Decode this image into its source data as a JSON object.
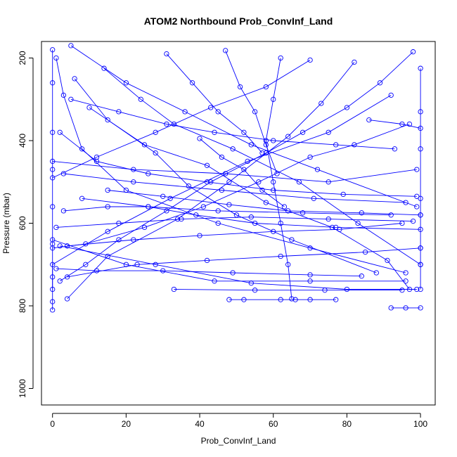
{
  "chart_data": {
    "type": "line",
    "title": "ATOM2 Northbound Prob_ConvInf_Land",
    "xlabel": "Prob_ConvInf_Land",
    "ylabel": "Pressure (mbar)",
    "xlim": [
      -3,
      104
    ],
    "ylim": [
      1040,
      160
    ],
    "y_reversed": true,
    "xticks": [
      0,
      20,
      40,
      60,
      80,
      100
    ],
    "yticks": [
      200,
      400,
      600,
      800,
      1000
    ],
    "grid": false,
    "legend": "none",
    "marker": "open-circle",
    "series_color": "#0000ff",
    "series": [
      {
        "values": [
          [
            100,
            225
          ],
          [
            100,
            330
          ],
          [
            100,
            420
          ],
          [
            100,
            540
          ],
          [
            100,
            580
          ],
          [
            100,
            660
          ],
          [
            100,
            700
          ],
          [
            100,
            760
          ]
        ]
      },
      {
        "values": [
          [
            0,
            180
          ],
          [
            0,
            260
          ],
          [
            0,
            380
          ],
          [
            0,
            470
          ],
          [
            0,
            560
          ],
          [
            0,
            650
          ],
          [
            0,
            730
          ],
          [
            0,
            790
          ],
          [
            0,
            810
          ]
        ]
      },
      {
        "values": [
          [
            1,
            200
          ],
          [
            3,
            290
          ],
          [
            8,
            420
          ],
          [
            20,
            520
          ],
          [
            45,
            600
          ],
          [
            70,
            660
          ],
          [
            96,
            720
          ]
        ]
      },
      {
        "values": [
          [
            5,
            170
          ],
          [
            20,
            260
          ],
          [
            36,
            330
          ],
          [
            54,
            410
          ],
          [
            72,
            470
          ],
          [
            99,
            560
          ]
        ]
      },
      {
        "values": [
          [
            92,
            290
          ],
          [
            75,
            380
          ],
          [
            53,
            450
          ],
          [
            32,
            540
          ],
          [
            15,
            620
          ],
          [
            0,
            700
          ],
          [
            0,
            760
          ]
        ]
      },
      {
        "values": [
          [
            62,
            200
          ],
          [
            60,
            300
          ],
          [
            58,
            400
          ],
          [
            60,
            500
          ],
          [
            62,
            600
          ],
          [
            64,
            700
          ],
          [
            65,
            783
          ]
        ]
      },
      {
        "values": [
          [
            2,
            655
          ],
          [
            28,
            700
          ],
          [
            54,
            745
          ],
          [
            80,
            760
          ],
          [
            99,
            760
          ]
        ]
      },
      {
        "values": [
          [
            82,
            210
          ],
          [
            73,
            310
          ],
          [
            64,
            390
          ],
          [
            48,
            500
          ],
          [
            34,
            590
          ],
          [
            15,
            680
          ],
          [
            4,
            783
          ]
        ]
      },
      {
        "values": [
          [
            10,
            320
          ],
          [
            25,
            410
          ],
          [
            42,
            460
          ],
          [
            58,
            550
          ],
          [
            76,
            610
          ],
          [
            91,
            690
          ],
          [
            97,
            760
          ]
        ]
      },
      {
        "values": [
          [
            0,
            640
          ],
          [
            20,
            700
          ],
          [
            44,
            740
          ],
          [
            70,
            740
          ],
          [
            96,
            740
          ]
        ]
      },
      {
        "values": [
          [
            3,
            480
          ],
          [
            22,
            500
          ],
          [
            46,
            520
          ],
          [
            71,
            540
          ],
          [
            96,
            550
          ]
        ]
      },
      {
        "values": [
          [
            0,
            450
          ],
          [
            22,
            470
          ],
          [
            47,
            480
          ],
          [
            75,
            500
          ],
          [
            99,
            470
          ]
        ]
      },
      {
        "values": [
          [
            6,
            250
          ],
          [
            15,
            350
          ],
          [
            28,
            430
          ],
          [
            37,
            510
          ],
          [
            50,
            580
          ],
          [
            65,
            640
          ],
          [
            88,
            720
          ]
        ]
      },
      {
        "values": [
          [
            98,
            185
          ],
          [
            89,
            260
          ],
          [
            80,
            320
          ],
          [
            68,
            380
          ],
          [
            58,
            430
          ],
          [
            43,
            500
          ],
          [
            31,
            570
          ],
          [
            18,
            640
          ],
          [
            9,
            700
          ],
          [
            2,
            740
          ]
        ]
      },
      {
        "values": [
          [
            47,
            182
          ],
          [
            51,
            270
          ],
          [
            55,
            330
          ],
          [
            58,
            410
          ],
          [
            61,
            480
          ]
        ]
      },
      {
        "values": [
          [
            14,
            225
          ],
          [
            24,
            300
          ],
          [
            33,
            360
          ],
          [
            49,
            420
          ],
          [
            67,
            500
          ],
          [
            83,
            600
          ],
          [
            100,
            700
          ]
        ]
      },
      {
        "values": [
          [
            31,
            190
          ],
          [
            38,
            260
          ],
          [
            45,
            330
          ],
          [
            52,
            380
          ],
          [
            57,
            430
          ]
        ]
      },
      {
        "values": [
          [
            70,
            205
          ],
          [
            58,
            270
          ],
          [
            43,
            320
          ],
          [
            28,
            380
          ],
          [
            12,
            440
          ],
          [
            0,
            490
          ]
        ]
      },
      {
        "values": [
          [
            92,
            805
          ],
          [
            96,
            805
          ],
          [
            100,
            805
          ]
        ]
      },
      {
        "values": [
          [
            48,
            785
          ],
          [
            52,
            785
          ],
          [
            62,
            785
          ],
          [
            66,
            785
          ],
          [
            70,
            785
          ],
          [
            77,
            785
          ]
        ]
      },
      {
        "values": [
          [
            1,
            710
          ],
          [
            12,
            715
          ],
          [
            30,
            715
          ],
          [
            49,
            720
          ],
          [
            70,
            725
          ],
          [
            84,
            728
          ]
        ]
      },
      {
        "values": [
          [
            33,
            760
          ],
          [
            55,
            762
          ],
          [
            74,
            762
          ],
          [
            95,
            762
          ]
        ]
      },
      {
        "values": [
          [
            8,
            540
          ],
          [
            26,
            560
          ],
          [
            39,
            580
          ],
          [
            55,
            600
          ],
          [
            77,
            610
          ],
          [
            100,
            615
          ]
        ]
      },
      {
        "values": [
          [
            97,
            360
          ],
          [
            82,
            410
          ],
          [
            70,
            440
          ],
          [
            56,
            500
          ],
          [
            41,
            560
          ],
          [
            25,
            610
          ],
          [
            9,
            650
          ],
          [
            0,
            660
          ]
        ]
      },
      {
        "values": [
          [
            95,
            600
          ],
          [
            78,
            615
          ],
          [
            60,
            620
          ],
          [
            40,
            630
          ],
          [
            22,
            640
          ],
          [
            4,
            655
          ]
        ]
      },
      {
        "values": [
          [
            15,
            520
          ],
          [
            30,
            535
          ],
          [
            48,
            555
          ],
          [
            64,
            570
          ],
          [
            84,
            575
          ],
          [
            100,
            580
          ]
        ]
      },
      {
        "values": [
          [
            2,
            380
          ],
          [
            12,
            450
          ],
          [
            26,
            480
          ],
          [
            42,
            500
          ],
          [
            60,
            520
          ],
          [
            79,
            530
          ],
          [
            99,
            535
          ]
        ]
      },
      {
        "values": [
          [
            40,
            395
          ],
          [
            46,
            440
          ],
          [
            52,
            470
          ],
          [
            57,
            520
          ],
          [
            63,
            560
          ]
        ]
      },
      {
        "values": [
          [
            86,
            350
          ],
          [
            95,
            360
          ],
          [
            100,
            370
          ]
        ]
      },
      {
        "values": [
          [
            1,
            610
          ],
          [
            18,
            600
          ],
          [
            35,
            590
          ],
          [
            54,
            585
          ],
          [
            75,
            590
          ],
          [
            98,
            595
          ]
        ]
      },
      {
        "values": [
          [
            3,
            570
          ],
          [
            15,
            560
          ],
          [
            26,
            560
          ],
          [
            45,
            570
          ],
          [
            68,
            575
          ],
          [
            92,
            580
          ]
        ]
      },
      {
        "values": [
          [
            5,
            300
          ],
          [
            18,
            330
          ],
          [
            31,
            360
          ],
          [
            44,
            380
          ],
          [
            60,
            400
          ],
          [
            77,
            410
          ],
          [
            93,
            420
          ]
        ]
      },
      {
        "values": [
          [
            4,
            730
          ],
          [
            23,
            700
          ],
          [
            42,
            690
          ],
          [
            62,
            680
          ],
          [
            85,
            670
          ],
          [
            100,
            660
          ]
        ]
      }
    ]
  }
}
